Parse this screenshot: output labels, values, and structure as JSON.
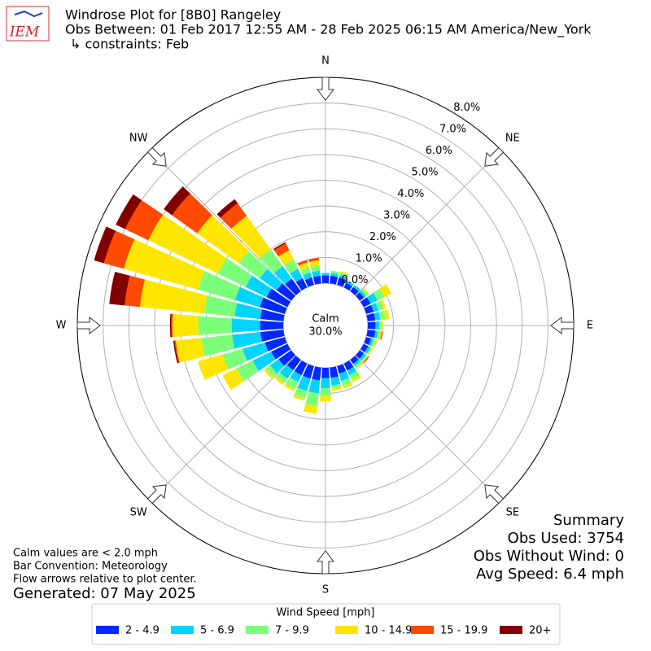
{
  "logo": "IEM",
  "chart_data": {
    "type": "windrose",
    "title": "Windrose Plot for [8B0] Rangeley",
    "subtitle": "Obs Between: 01 Feb 2017 12:55 AM - 28 Feb 2025 06:15 AM America/New_York",
    "subtitle2": "↳ constraints: Feb",
    "compass_labels": [
      "N",
      "NE",
      "E",
      "SE",
      "S",
      "SW",
      "W",
      "NW"
    ],
    "calm": {
      "label": "Calm",
      "value": 30.0,
      "value_label": "30.0%"
    },
    "rlim": [
      0,
      8
    ],
    "rticks": [
      {
        "value": 0,
        "label": "0.0%"
      },
      {
        "value": 1,
        "label": "1.0%"
      },
      {
        "value": 2,
        "label": "2.0%"
      },
      {
        "value": 3,
        "label": "3.0%"
      },
      {
        "value": 4,
        "label": "4.0%"
      },
      {
        "value": 5,
        "label": "5.0%"
      },
      {
        "value": 6,
        "label": "6.0%"
      },
      {
        "value": 7,
        "label": "7.0%"
      },
      {
        "value": 8,
        "label": "8.0%"
      }
    ],
    "grid": true,
    "x": [
      0,
      10,
      20,
      30,
      40,
      50,
      60,
      70,
      80,
      90,
      100,
      110,
      120,
      130,
      140,
      150,
      160,
      170,
      180,
      190,
      200,
      210,
      220,
      230,
      240,
      250,
      260,
      270,
      280,
      290,
      300,
      310,
      320,
      330,
      340,
      350
    ],
    "legend_title": "Wind Speed [mph]",
    "series": [
      {
        "name": "2 - 4.9",
        "color": "#0028ff",
        "values": [
          0.3,
          0.3,
          0.3,
          0.2,
          0.2,
          0.2,
          0.3,
          0.3,
          0.3,
          0.3,
          0.3,
          0.2,
          0.2,
          0.2,
          0.2,
          0.3,
          0.3,
          0.4,
          0.4,
          0.5,
          0.5,
          0.5,
          0.5,
          0.6,
          0.7,
          0.8,
          0.9,
          0.9,
          0.9,
          1.0,
          0.9,
          0.7,
          0.6,
          0.4,
          0.3,
          0.3
        ]
      },
      {
        "name": "5 - 6.9",
        "color": "#00d4ff",
        "values": [
          0.1,
          0.1,
          0.1,
          0.1,
          0.1,
          0.1,
          0.3,
          0.2,
          0.2,
          0.15,
          0.1,
          0.1,
          0.1,
          0.1,
          0.1,
          0.2,
          0.3,
          0.3,
          0.4,
          0.5,
          0.5,
          0.3,
          0.4,
          0.4,
          0.8,
          0.9,
          1.1,
          1.1,
          1.0,
          1.0,
          0.9,
          0.8,
          0.6,
          0.4,
          0.2,
          0.2
        ]
      },
      {
        "name": "7 - 9.9",
        "color": "#7cff79",
        "values": [
          0,
          0.1,
          0.1,
          0,
          0,
          0.1,
          0.3,
          0.2,
          0.2,
          0.1,
          0.1,
          0.1,
          0.05,
          0.05,
          0.1,
          0.2,
          0.2,
          0.1,
          0.3,
          0.5,
          0.3,
          0.3,
          0.2,
          0.2,
          0.7,
          0.8,
          1.2,
          1.3,
          1.2,
          1.5,
          1.2,
          1.0,
          0.8,
          0.4,
          0.2,
          0.2
        ]
      },
      {
        "name": "10 - 14.9",
        "color": "#ffe600",
        "values": [
          0,
          0,
          0.05,
          0,
          0,
          0.05,
          0.3,
          0.1,
          0.15,
          0.05,
          0.05,
          0.05,
          0.05,
          0.05,
          0.05,
          0.1,
          0.1,
          0.1,
          0.2,
          0.3,
          0.1,
          0.1,
          0.1,
          0.1,
          0.6,
          1.0,
          1.0,
          1.0,
          2.5,
          3.0,
          3.0,
          2.0,
          1.6,
          0.4,
          0.2,
          0.2
        ]
      },
      {
        "name": "15 - 19.9",
        "color": "#ff4a00",
        "values": [
          0,
          0,
          0,
          0,
          0,
          0,
          0,
          0,
          0,
          0,
          0.05,
          0,
          0,
          0.05,
          0,
          0,
          0,
          0,
          0,
          0,
          0,
          0,
          0,
          0,
          0,
          0,
          0.05,
          0.05,
          0.6,
          0.8,
          1.0,
          1.2,
          0.6,
          0.3,
          0.1,
          0.1
        ]
      },
      {
        "name": "20+",
        "color": "#800000",
        "values": [
          0,
          0,
          0,
          0,
          0,
          0,
          0,
          0,
          0,
          0,
          0,
          0,
          0,
          0,
          0,
          0,
          0,
          0,
          0,
          0,
          0,
          0,
          0,
          0,
          0,
          0,
          0.05,
          0.05,
          0.6,
          0.4,
          0.4,
          0.4,
          0.2,
          0.05,
          0,
          0
        ]
      }
    ]
  },
  "notes": [
    "Calm values are < 2.0 mph",
    "Bar Convention: Meteorology",
    "Flow arrows relative to plot center."
  ],
  "generated": "Generated: 07 May 2025",
  "summary": [
    "Summary",
    "Obs Used: 3754",
    "Obs Without Wind: 0",
    "Avg Speed: 6.4 mph"
  ]
}
